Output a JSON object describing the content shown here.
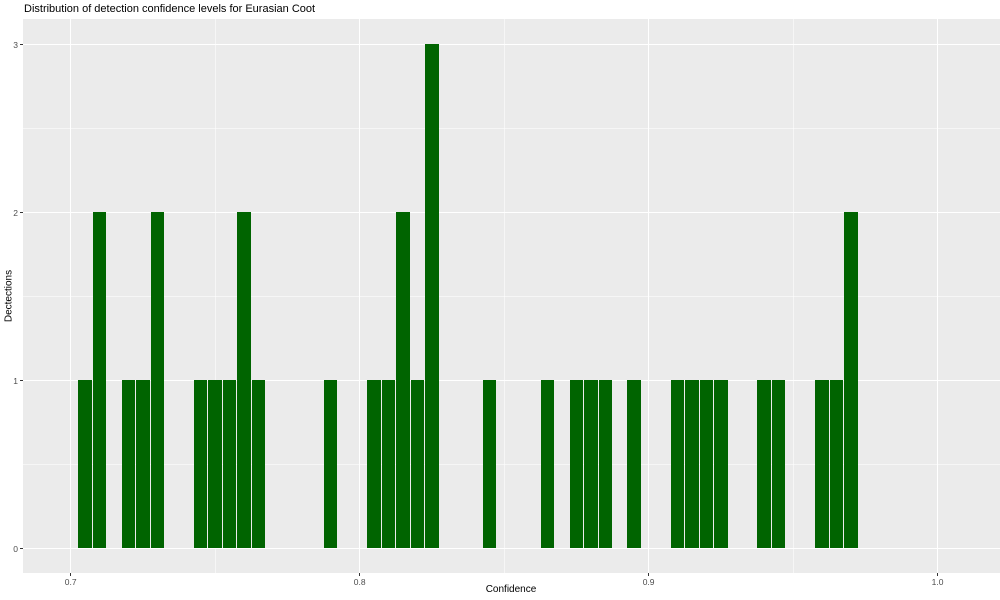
{
  "title": "Distribution of detection confidence levels for Eurasian Coot",
  "chart_data": {
    "type": "bar",
    "subtype": "histogram",
    "title": "Distribution of detection confidence levels for Eurasian Coot",
    "xlabel": "Confidence",
    "ylabel": "Dectections",
    "bin_width": 0.005,
    "bin_centers": [
      0.705,
      0.71,
      0.72,
      0.725,
      0.73,
      0.745,
      0.75,
      0.755,
      0.76,
      0.765,
      0.79,
      0.805,
      0.81,
      0.815,
      0.82,
      0.825,
      0.845,
      0.865,
      0.875,
      0.88,
      0.885,
      0.895,
      0.91,
      0.915,
      0.92,
      0.925,
      0.94,
      0.945,
      0.96,
      0.965,
      0.97
    ],
    "counts": [
      1,
      2,
      1,
      1,
      2,
      1,
      1,
      1,
      2,
      1,
      1,
      1,
      1,
      2,
      1,
      3,
      1,
      1,
      1,
      1,
      1,
      1,
      1,
      1,
      1,
      1,
      1,
      1,
      1,
      1,
      2
    ],
    "x_ticks": [
      0.7,
      0.8,
      0.9,
      1.0
    ],
    "x_tick_labels": [
      "0.7",
      "0.8",
      "0.9",
      "1.0"
    ],
    "x_minor_ticks": [
      0.75,
      0.85,
      0.95
    ],
    "y_ticks": [
      0,
      1,
      2,
      3
    ],
    "y_tick_labels": [
      "0",
      "1",
      "2",
      "3"
    ],
    "y_minor_ticks": [
      0.5,
      1.5,
      2.5
    ],
    "xlim": [
      0.6835,
      1.0216
    ],
    "ylim": [
      -0.147,
      3.151
    ],
    "grid": true,
    "legend": false,
    "colors": {
      "bar_fill": "#006400",
      "panel_background": "#ebebeb",
      "gridline": "#ffffff",
      "tick_label": "#4d4d4d",
      "text": "#000000",
      "page_background": "#ffffff"
    }
  }
}
